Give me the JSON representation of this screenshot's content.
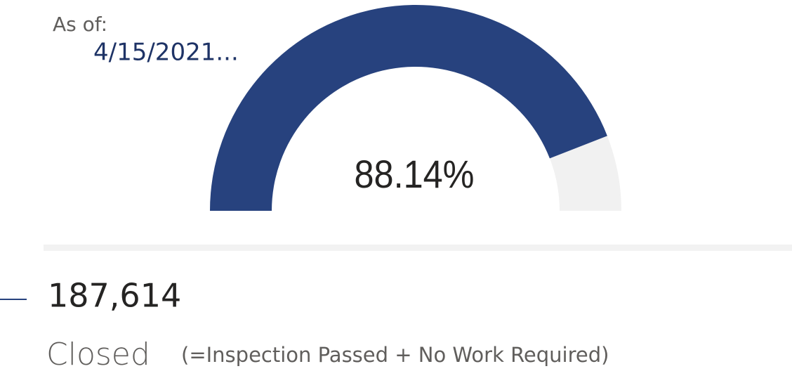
{
  "chart_data": {
    "type": "gauge",
    "values": [
      88.14
    ],
    "value_labels": [
      "88.14%"
    ],
    "ylim": [
      0,
      100
    ],
    "color": "#27427e",
    "track_color": "#f1f1f1",
    "annotations": [
      "As of:",
      "4/15/2021..."
    ]
  },
  "card": {
    "value": "187,614",
    "label": "Closed",
    "note": "(=Inspection Passed + No Work Required)"
  }
}
